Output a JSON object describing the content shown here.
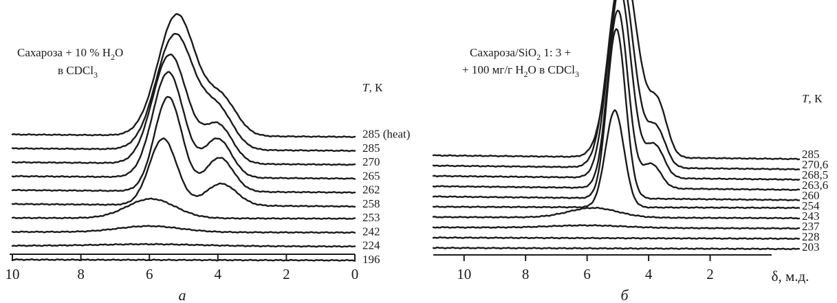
{
  "chart_data": [
    {
      "type": "line",
      "panel_label": "а",
      "annotation": [
        "Сахароза + 10 % H",
        "2",
        "O",
        "в CDCl",
        "3"
      ],
      "legend_title": [
        "T",
        ", К"
      ],
      "x_ticks": [
        "10",
        "8",
        "6",
        "4",
        "2",
        "0"
      ],
      "xlim": [
        10,
        0
      ],
      "x_reversed": true,
      "series": [
        {
          "label": "285 (heat)",
          "baseline": 0.905,
          "peaks": [
            [
              5.2,
              1.0,
              0.55
            ],
            [
              3.9,
              0.3,
              0.45
            ]
          ]
        },
        {
          "label": "285",
          "baseline": 0.79,
          "peaks": [
            [
              5.25,
              0.95,
              0.55
            ],
            [
              4.0,
              0.32,
              0.45
            ]
          ]
        },
        {
          "label": "270",
          "baseline": 0.675,
          "peaks": [
            [
              5.4,
              0.9,
              0.5
            ],
            [
              4.0,
              0.32,
              0.42
            ]
          ]
        },
        {
          "label": "265",
          "baseline": 0.56,
          "peaks": [
            [
              5.45,
              0.87,
              0.45
            ],
            [
              4.0,
              0.32,
              0.4
            ]
          ]
        },
        {
          "label": "262",
          "baseline": 0.445,
          "peaks": [
            [
              5.45,
              0.78,
              0.4
            ],
            [
              3.95,
              0.28,
              0.4
            ]
          ]
        },
        {
          "label": "258",
          "baseline": 0.33,
          "peaks": [
            [
              5.6,
              0.55,
              0.4
            ],
            [
              3.9,
              0.18,
              0.45
            ]
          ]
        },
        {
          "label": "253",
          "baseline": 0.215,
          "peaks": [
            [
              5.95,
              0.16,
              0.7
            ]
          ]
        },
        {
          "label": "242",
          "baseline": 0.1,
          "peaks": [
            [
              6.0,
              0.05,
              0.9
            ]
          ]
        },
        {
          "label": "224",
          "baseline": -0.015,
          "peaks": [
            [
              6.0,
              0.015,
              1.5
            ]
          ]
        },
        {
          "label": "196",
          "baseline": -0.13,
          "peaks": []
        }
      ]
    },
    {
      "type": "line",
      "panel_label": "б",
      "annotation": [
        "Сахароза/SiO",
        "2",
        " 1: 3  +",
        "+ 100 мг/г H",
        "2",
        "O в CDCl",
        "3"
      ],
      "legend_title": [
        "T",
        ", К"
      ],
      "x_ticks": [
        "10",
        "8",
        "6",
        "4",
        "2"
      ],
      "xlabel": "δ, м.д.",
      "xlim": [
        11,
        0
      ],
      "x_reversed": true,
      "series": [
        {
          "label": "285",
          "baseline": 0.715,
          "peaks": [
            [
              4.8,
              1.55,
              0.45
            ],
            [
              3.7,
              0.42,
              0.3
            ]
          ]
        },
        {
          "label": "270,6",
          "baseline": 0.63,
          "peaks": [
            [
              4.9,
              1.58,
              0.42
            ],
            [
              3.75,
              0.32,
              0.3
            ]
          ]
        },
        {
          "label": "268,5",
          "baseline": 0.545,
          "peaks": [
            [
              4.95,
              1.57,
              0.38
            ],
            [
              3.8,
              0.27,
              0.3
            ]
          ]
        },
        {
          "label": "263,6",
          "baseline": 0.46,
          "peaks": [
            [
              5.0,
              1.47,
              0.33
            ],
            [
              3.9,
              0.2,
              0.3
            ]
          ]
        },
        {
          "label": "260",
          "baseline": 0.375,
          "peaks": [
            [
              5.05,
              1.4,
              0.3
            ]
          ]
        },
        {
          "label": "254",
          "baseline": 0.29,
          "peaks": [
            [
              5.1,
              0.8,
              0.3
            ]
          ]
        },
        {
          "label": "243",
          "baseline": 0.205,
          "peaks": [
            [
              5.8,
              0.08,
              0.8
            ]
          ]
        },
        {
          "label": "237",
          "baseline": 0.12,
          "peaks": [
            [
              6.0,
              0.02,
              1.2
            ]
          ]
        },
        {
          "label": "228",
          "baseline": 0.035,
          "peaks": []
        },
        {
          "label": "203",
          "baseline": -0.05,
          "peaks": []
        }
      ]
    }
  ]
}
